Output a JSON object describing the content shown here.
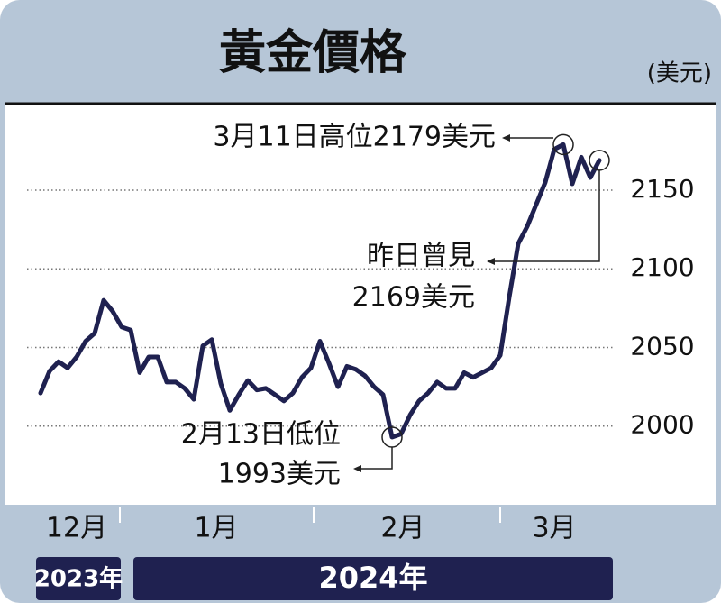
{
  "chart_data": {
    "type": "line",
    "title": "黃金價格",
    "unit": "(美元)",
    "months": [
      "12月",
      "1月",
      "2月",
      "3月"
    ],
    "years": [
      "2023年",
      "2024年"
    ],
    "series": [
      {
        "color": "#1f2150",
        "values": [
          2021,
          2035,
          2041,
          2037,
          2044,
          2054,
          2059,
          2080,
          2073,
          2063,
          2061,
          2034,
          2044,
          2044,
          2028,
          2028,
          2024,
          2017,
          2051,
          2055,
          2027,
          2010,
          2020,
          2029,
          2023,
          2024,
          2020,
          2016,
          2021,
          2031,
          2037,
          2054,
          2040,
          2025,
          2038,
          2036,
          2032,
          2025,
          2020,
          1993,
          1995,
          2007,
          2016,
          2021,
          2028,
          2024,
          2024,
          2034,
          2031,
          2034,
          2037,
          2045,
          2082,
          2116,
          2127,
          2141,
          2155,
          2176,
          2179,
          2154,
          2171,
          2158,
          2169
        ]
      }
    ],
    "ylim": [
      1950,
      2205
    ],
    "yticks": [
      2000,
      2050,
      2100,
      2150
    ],
    "grid": true,
    "annotations": [
      {
        "lines": [
          "3月11日高位2179美元"
        ]
      },
      {
        "lines": [
          "昨日曾見",
          "2169美元"
        ]
      },
      {
        "lines": [
          "2月13日低位",
          "1993美元"
        ]
      }
    ]
  }
}
